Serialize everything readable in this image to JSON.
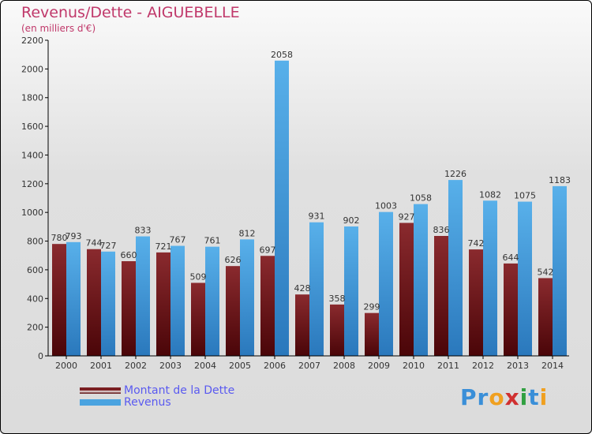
{
  "chart_data": {
    "type": "bar",
    "title": "Revenus/Dette - AIGUEBELLE",
    "subtitle": "(en milliers d'€)",
    "categories": [
      "2000",
      "2001",
      "2002",
      "2003",
      "2004",
      "2005",
      "2006",
      "2007",
      "2008",
      "2009",
      "2010",
      "2011",
      "2012",
      "2013",
      "2014"
    ],
    "series": [
      {
        "name": "Montant de la Dette",
        "color": "#7a1f22",
        "values": [
          780,
          744,
          660,
          721,
          509,
          626,
          697,
          428,
          358,
          299,
          927,
          836,
          742,
          644,
          542
        ]
      },
      {
        "name": "Revenus",
        "color": "#4aa3e0",
        "values": [
          793,
          727,
          833,
          767,
          761,
          812,
          2058,
          931,
          902,
          1003,
          1058,
          1226,
          1082,
          1075,
          1183
        ]
      }
    ],
    "yticks": [
      0,
      200,
      400,
      600,
      800,
      1000,
      1200,
      1400,
      1600,
      1800,
      2000,
      2200
    ],
    "ylim": [
      0,
      2200
    ],
    "legend": "bottom-left"
  },
  "logo": "Proxiti"
}
